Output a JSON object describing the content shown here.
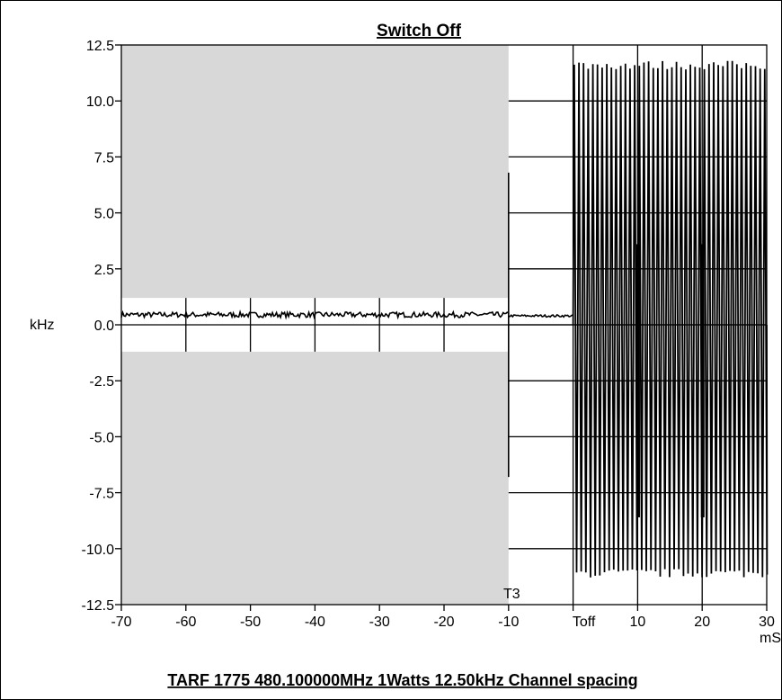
{
  "chart_data": {
    "type": "line",
    "title": "Switch Off",
    "footer": "TARF 1775  480.100000MHz  1Watts   12.50kHz Channel spacing",
    "ylabel": "kHz",
    "xunit": "mS",
    "xlim": [
      -70,
      30
    ],
    "ylim": [
      -12.5,
      12.5
    ],
    "x_ticks": [
      -70,
      -60,
      -50,
      -40,
      -30,
      -20,
      -10,
      0,
      10,
      20,
      30
    ],
    "x_tick_labels": [
      "-70",
      "-60",
      "-50",
      "-40",
      "-30",
      "-20",
      "-10",
      "Toff",
      "10",
      "20",
      "30"
    ],
    "y_ticks": [
      12.5,
      10.0,
      7.5,
      5.0,
      2.5,
      0.0,
      -2.5,
      -5.0,
      -7.5,
      -10.0,
      -12.5
    ],
    "y_tick_labels": [
      "12.5",
      "10.0",
      "7.5",
      "5.0",
      "2.5",
      "0.0",
      "-2.5",
      "-5.0",
      "-7.5",
      "-10.0",
      "-12.5"
    ],
    "mask_region": {
      "x_range": [
        -70,
        -10
      ],
      "y_band": [
        -1.2,
        1.2
      ]
    },
    "marker_labels": [
      {
        "text": "T3",
        "x": -10
      }
    ],
    "series": [
      {
        "segments": [
          {
            "x_range": [
              -70,
              -10
            ],
            "level": 0.45,
            "noise": 0.12
          },
          {
            "x_range": [
              -10,
              0
            ],
            "level": 0.4,
            "noise": 0.05
          }
        ],
        "t3_spike": {
          "x": -10,
          "min": -6.8,
          "max": 6.8
        },
        "oscillation": {
          "x_range": [
            0,
            30
          ],
          "amplitude_max": 11.6,
          "amplitude_min": -11.1,
          "period_ms": 0.72,
          "inner_level": 3.8
        }
      }
    ]
  }
}
